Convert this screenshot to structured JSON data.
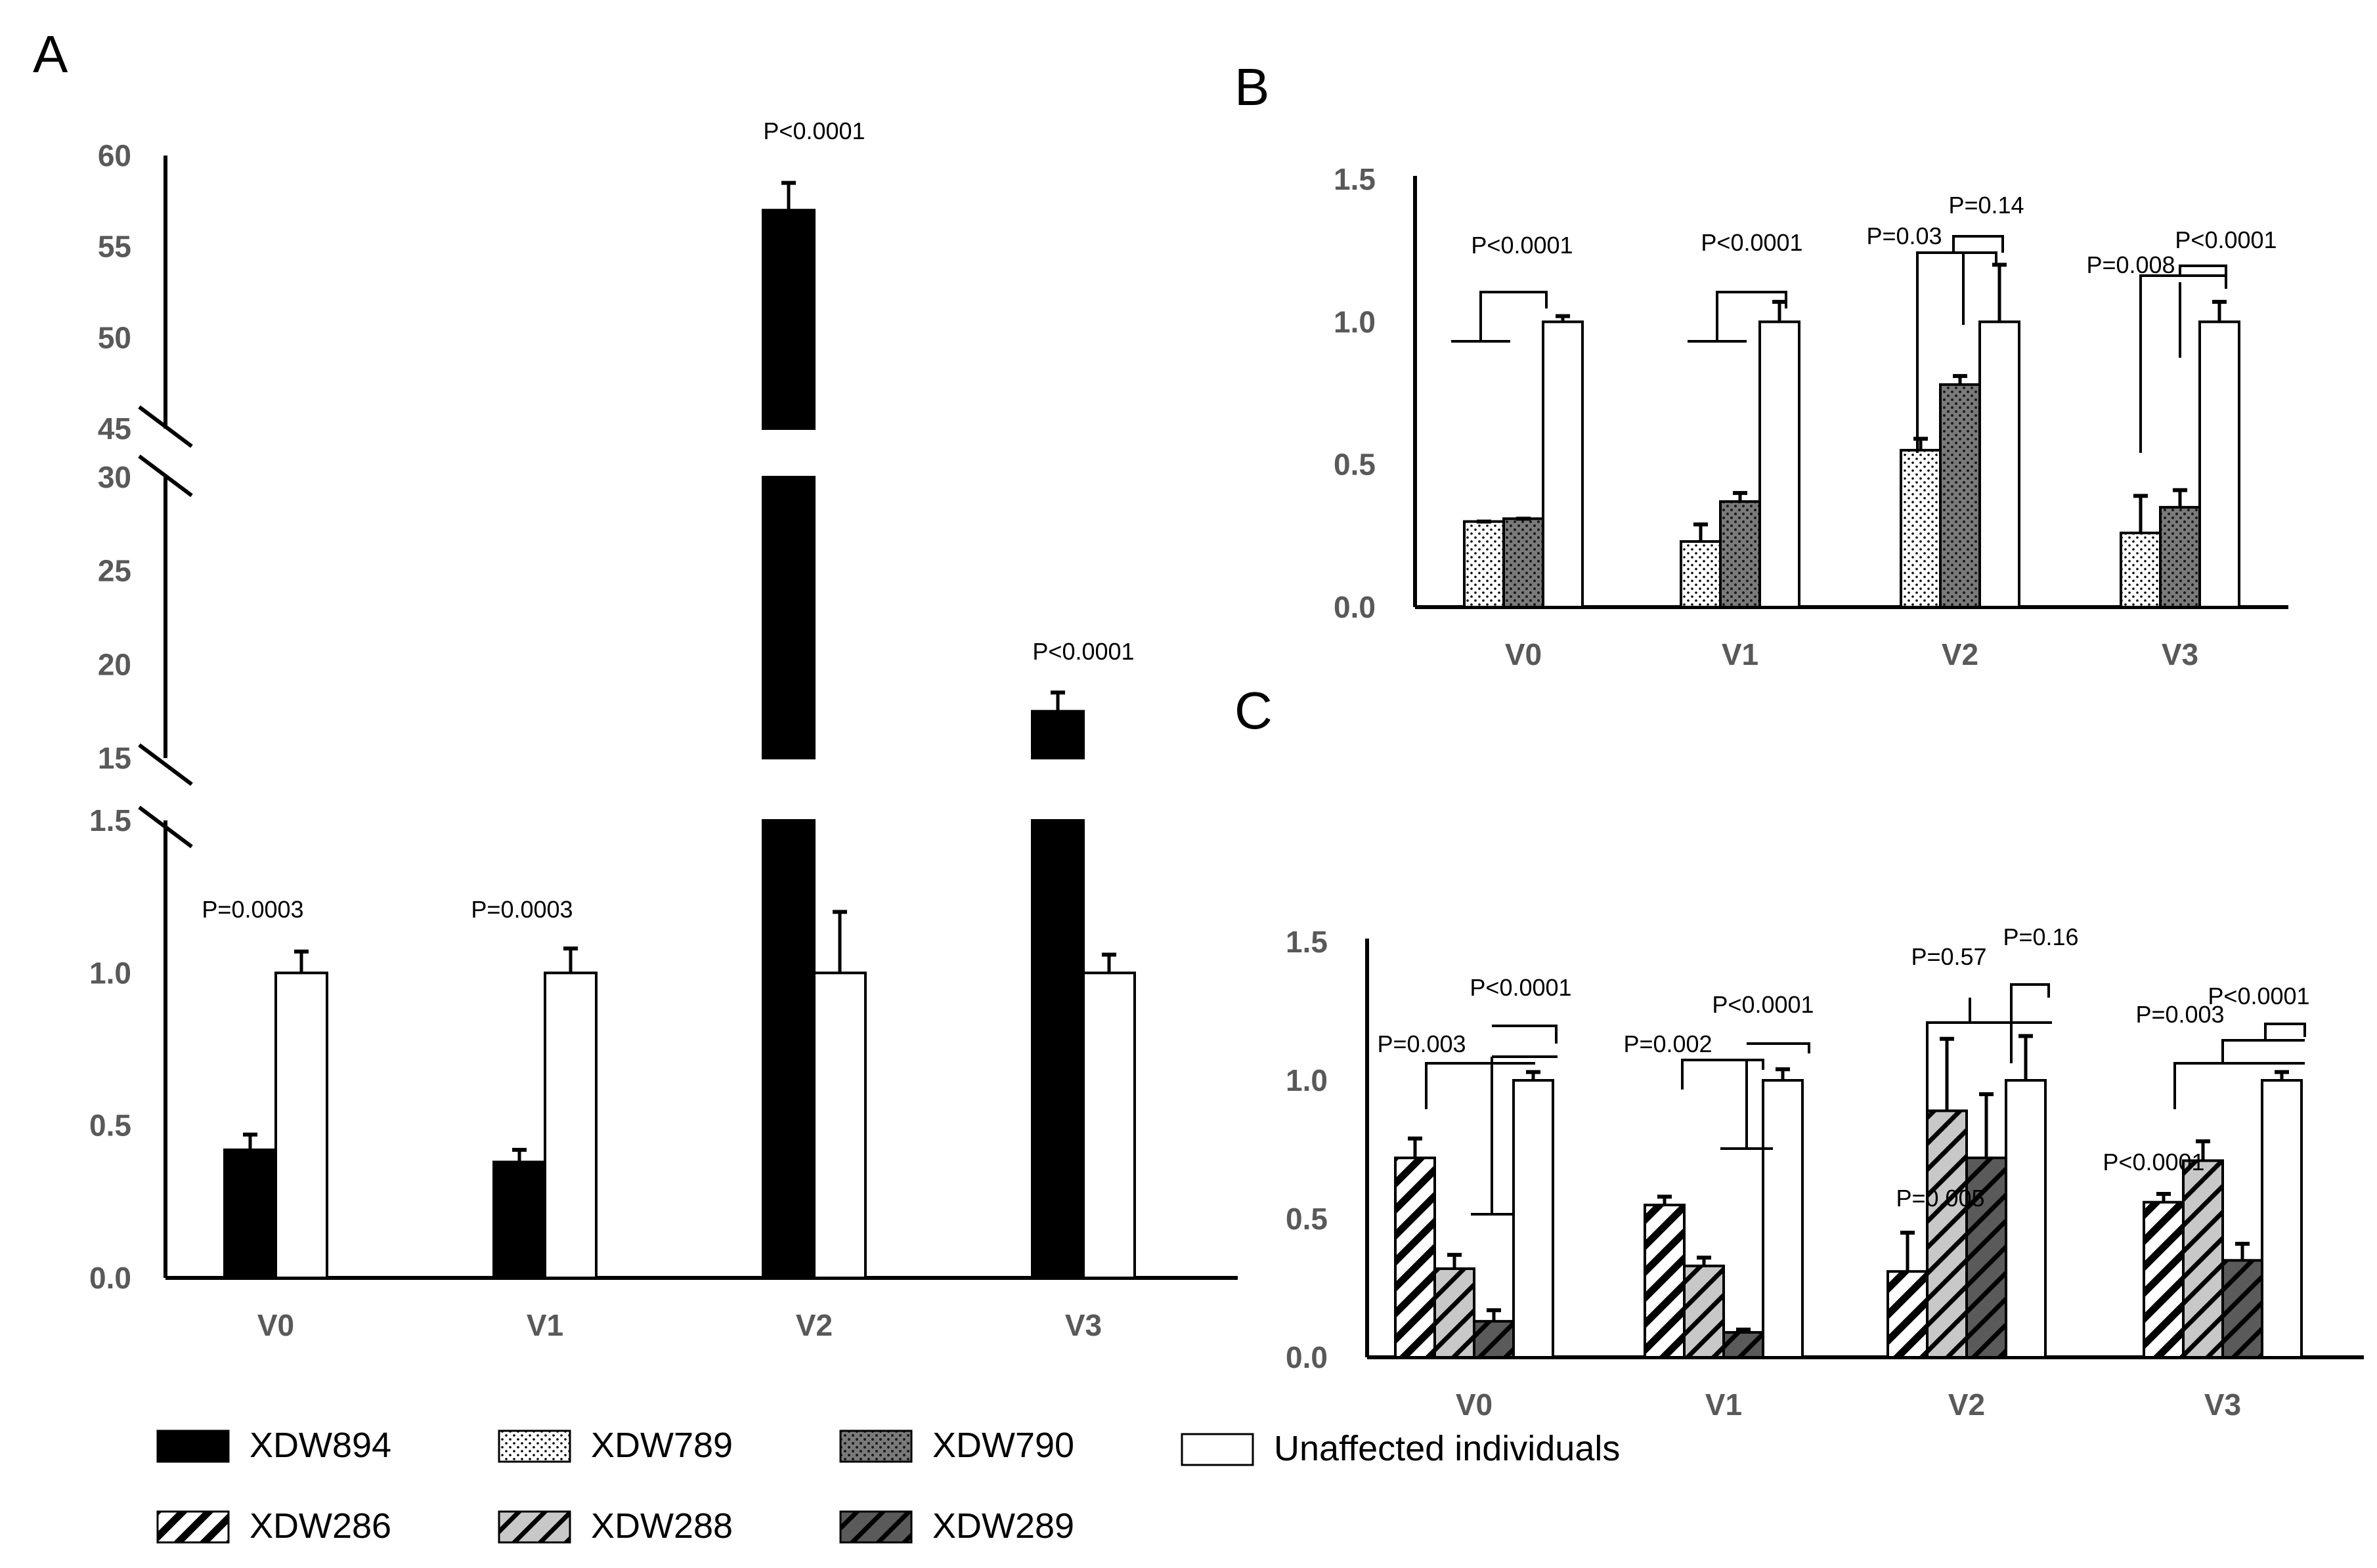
{
  "figure": {
    "panel_labels": {
      "a": "A",
      "b": "B",
      "c": "C"
    }
  },
  "chart_data": [
    {
      "panel": "A",
      "type": "bar",
      "categories": [
        "V0",
        "V1",
        "V2",
        "V3"
      ],
      "series": [
        {
          "name": "XDW894",
          "values": [
            0.42,
            0.38,
            57,
            17.5
          ],
          "errors": [
            0.05,
            0.04,
            1.5,
            1.0
          ]
        },
        {
          "name": "Unaffected individuals",
          "values": [
            1.0,
            1.0,
            1.0,
            1.0
          ],
          "errors": [
            0.07,
            0.08,
            0.2,
            0.06
          ]
        }
      ],
      "axis_segments": [
        {
          "range": [
            0,
            1.5
          ],
          "ticks": [
            "0.0",
            "0.5",
            "1.0",
            "1.5"
          ]
        },
        {
          "range": [
            15,
            30
          ],
          "ticks": [
            "15",
            "20",
            "25",
            "30"
          ]
        },
        {
          "range": [
            45,
            60
          ],
          "ticks": [
            "45",
            "50",
            "55",
            "60"
          ]
        }
      ],
      "p_values": [
        "P=0.0003",
        "P=0.0003",
        "P<0.0001",
        "P<0.0001"
      ]
    },
    {
      "panel": "B",
      "type": "bar",
      "categories": [
        "V0",
        "V1",
        "V2",
        "V3"
      ],
      "series": [
        {
          "name": "XDW789",
          "values": [
            0.3,
            0.23,
            0.55,
            0.26
          ],
          "errors": [
            0,
            0.06,
            0.04,
            0.13
          ]
        },
        {
          "name": "XDW790",
          "values": [
            0.31,
            0.37,
            0.78,
            0.35
          ],
          "errors": [
            0,
            0.03,
            0.03,
            0.06
          ]
        },
        {
          "name": "Unaffected individuals",
          "values": [
            1.0,
            1.0,
            1.0,
            1.0
          ],
          "errors": [
            0.02,
            0.07,
            0.2,
            0.07
          ]
        }
      ],
      "ylim": [
        0,
        1.5
      ],
      "yticks": [
        "0.0",
        "0.5",
        "1.0",
        "1.5"
      ],
      "p_labels": [
        "P<0.0001",
        "P<0.0001",
        "P=0.03",
        "P=0.14",
        "P=0.008",
        "P<0.0001"
      ]
    },
    {
      "panel": "C",
      "type": "bar",
      "categories": [
        "V0",
        "V1",
        "V2",
        "V3"
      ],
      "series": [
        {
          "name": "XDW286",
          "values": [
            0.72,
            0.55,
            0.31,
            0.56
          ],
          "errors": [
            0.07,
            0.03,
            0.14,
            0.03
          ]
        },
        {
          "name": "XDW288",
          "values": [
            0.32,
            0.33,
            0.89,
            0.71
          ],
          "errors": [
            0.05,
            0.03,
            0.26,
            0.07
          ]
        },
        {
          "name": "XDW289",
          "values": [
            0.13,
            0.09,
            0.72,
            0.35
          ],
          "errors": [
            0.04,
            0.01,
            0.23,
            0.06
          ]
        },
        {
          "name": "Unaffected individuals",
          "values": [
            1.0,
            1.0,
            1.0,
            1.0
          ],
          "errors": [
            0.03,
            0.04,
            0.16,
            0.03
          ]
        }
      ],
      "ylim": [
        0,
        1.5
      ],
      "yticks": [
        "0.0",
        "0.5",
        "1.0",
        "1.5"
      ],
      "p_labels": [
        "P<0.0001",
        "P=0.003",
        "P<0.0001",
        "P=0.002",
        "P=0.57",
        "P=0.16",
        "P=0.005",
        "P=0.003",
        "P<0.0001",
        "P<0.0001"
      ]
    }
  ],
  "legend": [
    {
      "label": "XDW894",
      "pattern": "solid-black"
    },
    {
      "label": "XDW789",
      "pattern": "dots-light"
    },
    {
      "label": "XDW790",
      "pattern": "dots-dark"
    },
    {
      "label": "Unaffected individuals",
      "pattern": "white"
    },
    {
      "label": "XDW286",
      "pattern": "hatch-white"
    },
    {
      "label": "XDW288",
      "pattern": "hatch-light"
    },
    {
      "label": "XDW289",
      "pattern": "hatch-dark"
    }
  ],
  "colors": {
    "ink": "#000000",
    "axis_text": "#595959",
    "light_gray": "#c8c8c8",
    "mid_gray": "#8c8c8c",
    "dark_gray": "#5a5a5a"
  }
}
